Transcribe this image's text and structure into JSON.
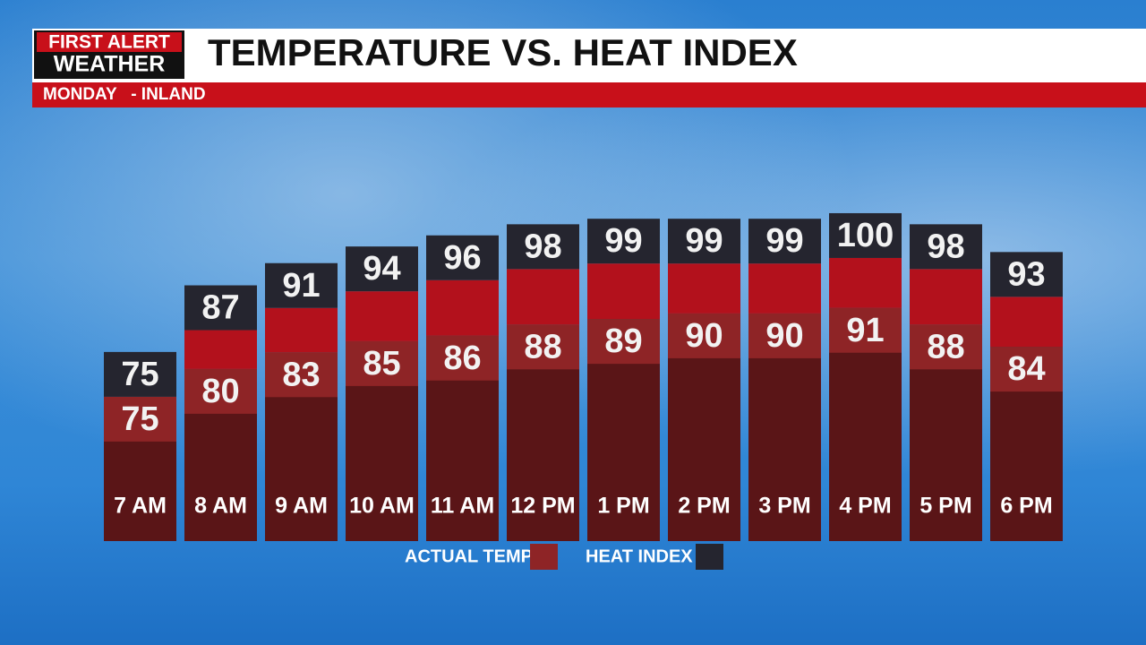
{
  "logo": {
    "line1": "FIRST ALERT",
    "line2": "WEATHER"
  },
  "chart_data": {
    "type": "bar",
    "title": "TEMPERATURE VS. HEAT INDEX",
    "subtitle": "MONDAY   - INLAND",
    "categories": [
      "7 AM",
      "8 AM",
      "9 AM",
      "10 AM",
      "11 AM",
      "12 PM",
      "1 PM",
      "2 PM",
      "3 PM",
      "4 PM",
      "5 PM",
      "6 PM"
    ],
    "series": [
      {
        "name": "ACTUAL TEMP",
        "color": "#8e2426",
        "values": [
          75,
          80,
          83,
          85,
          86,
          88,
          89,
          90,
          90,
          91,
          88,
          84
        ]
      },
      {
        "name": "HEAT INDEX",
        "color": "#25252f",
        "values": [
          75,
          87,
          91,
          94,
          96,
          98,
          99,
          99,
          99,
          100,
          98,
          93
        ]
      }
    ],
    "ylim": [
      49,
      110
    ]
  }
}
